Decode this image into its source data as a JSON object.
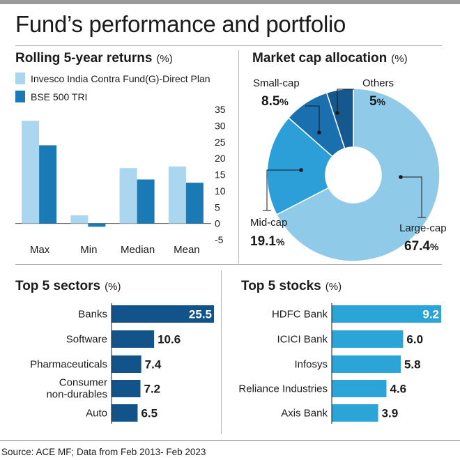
{
  "header": {
    "title": "Fund’s performance and portfolio",
    "source": "Source: ACE MF; Data from Feb 2013- Feb 2023"
  },
  "colors": {
    "fund": "#aad7ef",
    "index": "#1a7ab5",
    "pie": [
      "#8fcae8",
      "#2c9fd9",
      "#1a6fae",
      "#15588e"
    ],
    "sectors": "#12538a",
    "stocks": "#2ba4d8"
  },
  "chart_data": [
    {
      "type": "bar",
      "title": "Rolling 5-year returns",
      "unit": "(%)",
      "categories": [
        "Max",
        "Min",
        "Median",
        "Mean"
      ],
      "series": [
        {
          "name": "Invesco India Contra Fund(G)-Direct Plan",
          "values": [
            31.5,
            2.5,
            17,
            17.5
          ]
        },
        {
          "name": "BSE 500 TRI",
          "values": [
            24,
            -1,
            13.5,
            12.5
          ]
        }
      ],
      "ylim": [
        -5,
        35
      ],
      "yticks": [
        "35",
        "30",
        "25",
        "20",
        "15",
        "10",
        "5",
        "0",
        "-5"
      ],
      "ytick_values": [
        35,
        30,
        25,
        20,
        15,
        10,
        5,
        0,
        -5
      ]
    },
    {
      "type": "pie",
      "title": "Market cap allocation",
      "unit": "(%)",
      "slices": [
        {
          "label": "Large-cap",
          "value": 67.4,
          "display": "67.4"
        },
        {
          "label": "Mid-cap",
          "value": 19.1,
          "display": "19.1"
        },
        {
          "label": "Small-cap",
          "value": 8.5,
          "display": "8.5"
        },
        {
          "label": "Others",
          "value": 5,
          "display": "5"
        }
      ]
    },
    {
      "type": "bar",
      "orientation": "horizontal",
      "title": "Top 5 sectors",
      "unit": "(%)",
      "categories": [
        "Banks",
        "Software",
        "Pharmaceuticals",
        "Consumer non-durables",
        "Auto"
      ],
      "category_lines": [
        [
          "Banks"
        ],
        [
          "Software"
        ],
        [
          "Pharmaceuticals"
        ],
        [
          "Consumer",
          "non-durables"
        ],
        [
          "Auto"
        ]
      ],
      "values": [
        25.5,
        10.6,
        7.4,
        7.2,
        6.5
      ],
      "labels": [
        "25.5",
        "10.6",
        "7.4",
        "7.2",
        "6.5"
      ]
    },
    {
      "type": "bar",
      "orientation": "horizontal",
      "title": "Top 5 stocks",
      "unit": "(%)",
      "categories": [
        "HDFC Bank",
        "ICICI Bank",
        "Infosys",
        "Reliance Industries",
        "Axis Bank"
      ],
      "category_lines": [
        [
          "HDFC Bank"
        ],
        [
          "ICICI Bank"
        ],
        [
          "Infosys"
        ],
        [
          "Reliance Industries"
        ],
        [
          "Axis Bank"
        ]
      ],
      "values": [
        9.2,
        6.0,
        5.8,
        4.6,
        3.9
      ],
      "labels": [
        "9.2",
        "6.0",
        "5.8",
        "4.6",
        "3.9"
      ]
    }
  ]
}
